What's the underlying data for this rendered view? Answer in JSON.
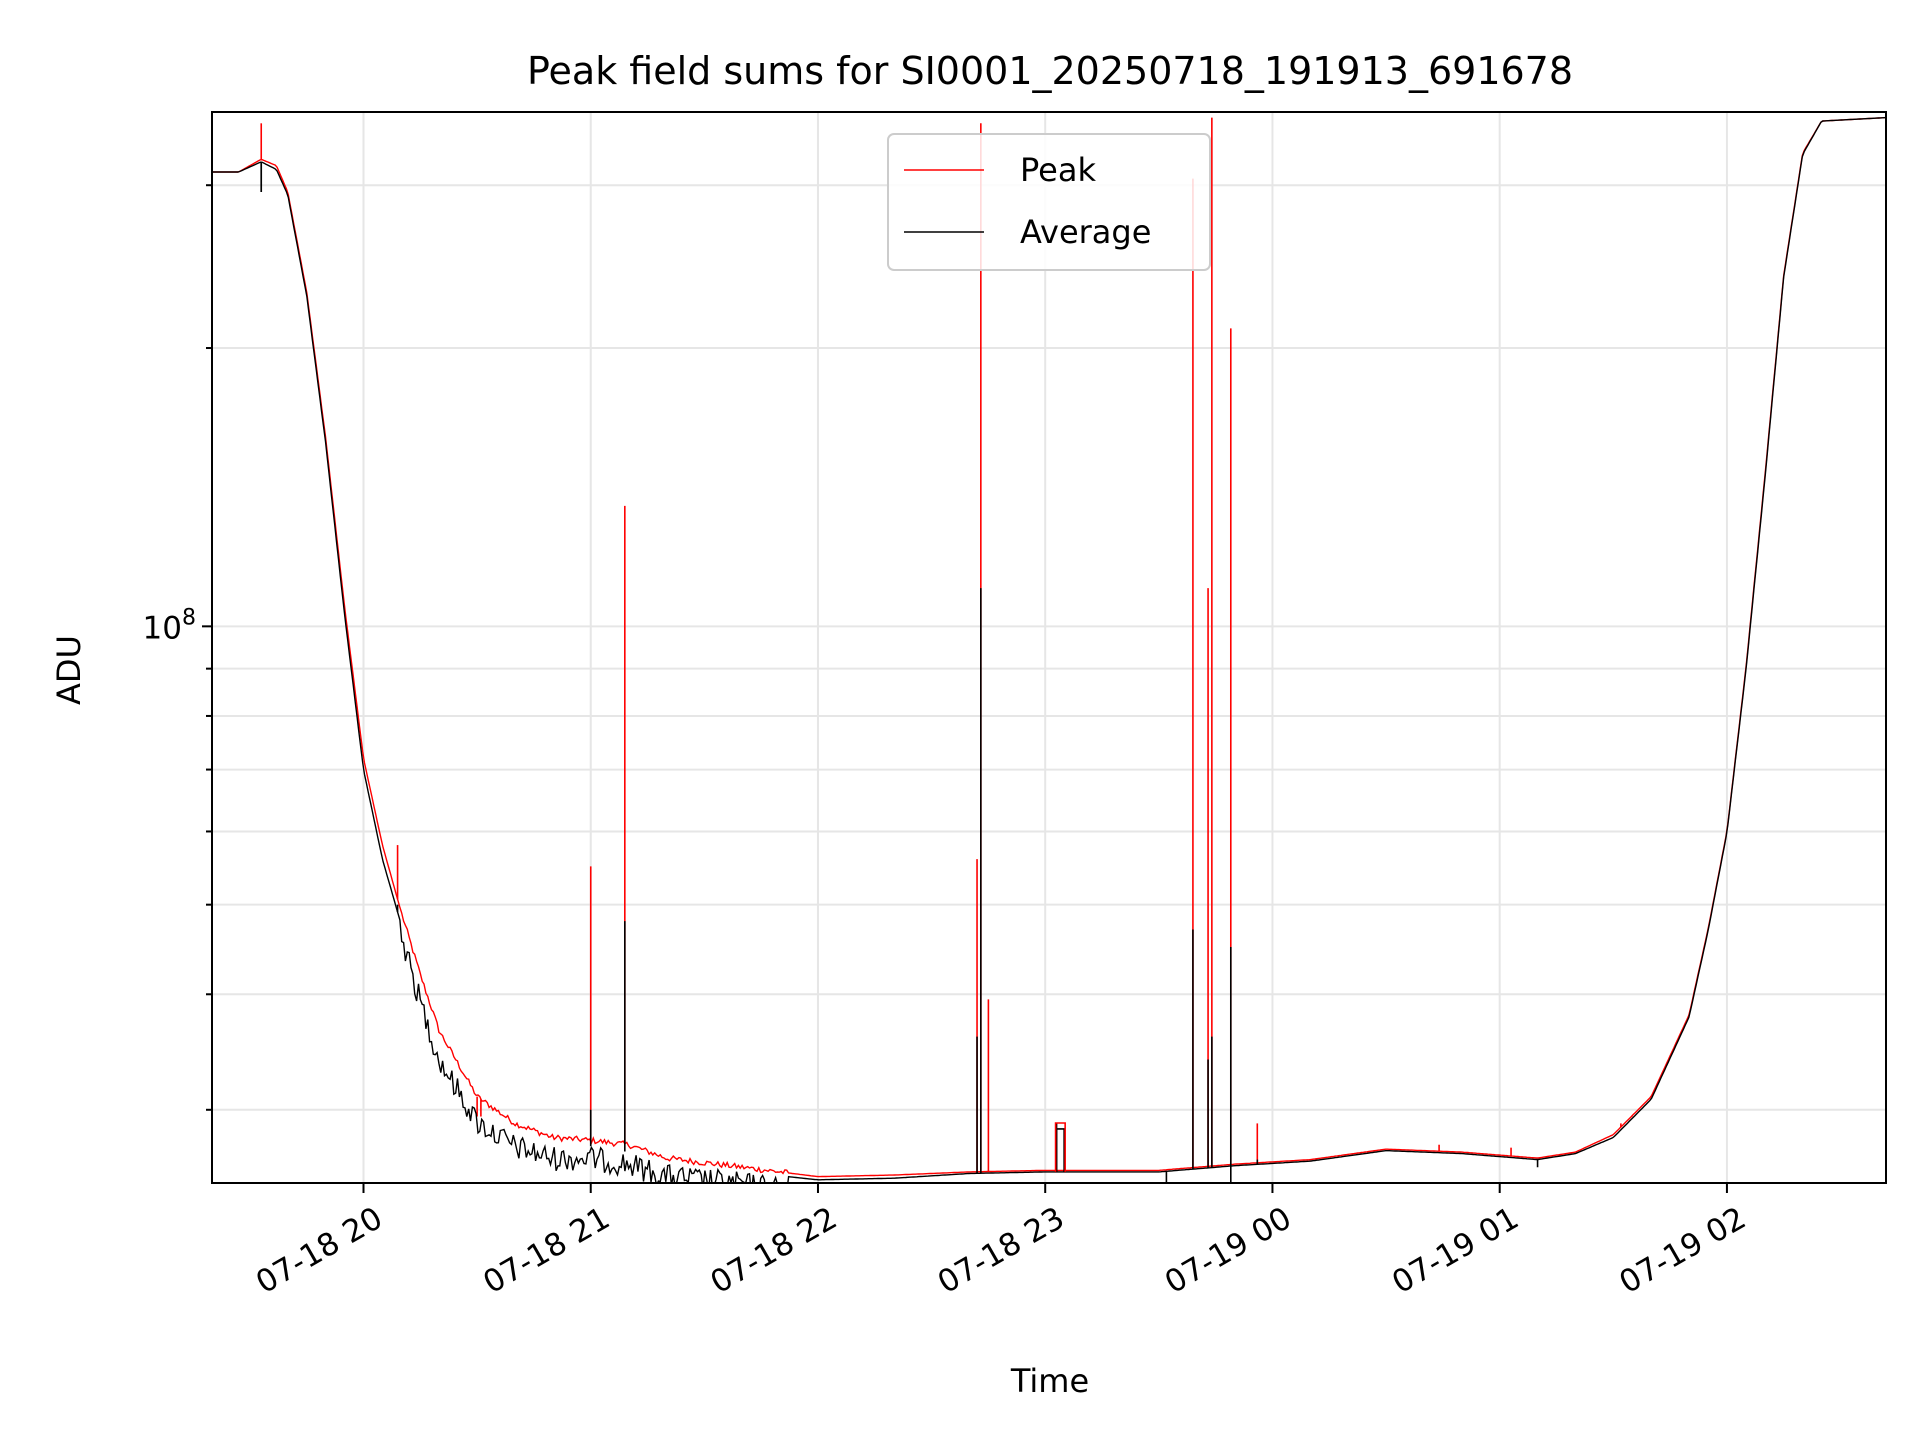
{
  "chart_data": {
    "type": "line",
    "title": "Peak field sums for SI0001_20250718_191913_691678",
    "xlabel": "Time",
    "ylabel": "ADU",
    "yscale": "log",
    "xlim": [
      "2025-07-18T19:20",
      "2025-07-19T02:42"
    ],
    "ylim": [
      25000000,
      360000000
    ],
    "grid": true,
    "legend_position": "top-center",
    "x_ticks": [
      "07-18 20",
      "07-18 21",
      "07-18 22",
      "07-18 23",
      "07-19 00",
      "07-19 01",
      "07-19 02"
    ],
    "y_tick_major": {
      "base": "10",
      "exponent": "8",
      "value": 100000000
    },
    "colors": {
      "peak": "#ff0000",
      "average": "#000000",
      "grid": "#e6e6e6"
    },
    "series": [
      {
        "name": "Peak",
        "baseline": [
          [
            "2025-07-18T19:20",
            310000000.0
          ],
          [
            "2025-07-18T19:27",
            310000000.0
          ],
          [
            "2025-07-18T19:33",
            320000000.0
          ],
          [
            "2025-07-18T19:37",
            315000000.0
          ],
          [
            "2025-07-18T19:40",
            295000000.0
          ],
          [
            "2025-07-18T19:45",
            230000000.0
          ],
          [
            "2025-07-18T19:50",
            160000000.0
          ],
          [
            "2025-07-18T19:55",
            105000000.0
          ],
          [
            "2025-07-18T20:00",
            72000000.0
          ],
          [
            "2025-07-18T20:05",
            58000000.0
          ],
          [
            "2025-07-18T20:10",
            49000000.0
          ],
          [
            "2025-07-18T20:15",
            42000000.0
          ],
          [
            "2025-07-18T20:20",
            36500000.0
          ],
          [
            "2025-07-18T20:30",
            31000000.0
          ],
          [
            "2025-07-18T20:40",
            29000000.0
          ],
          [
            "2025-07-18T20:50",
            28000000.0
          ],
          [
            "2025-07-18T21:00",
            27800000.0
          ],
          [
            "2025-07-18T21:10",
            27500000.0
          ],
          [
            "2025-07-18T21:20",
            26600000.0
          ],
          [
            "2025-07-18T21:40",
            26000000.0
          ],
          [
            "2025-07-18T22:00",
            25400000.0
          ],
          [
            "2025-07-18T22:20",
            25500000.0
          ],
          [
            "2025-07-18T22:40",
            25700000.0
          ],
          [
            "2025-07-18T23:00",
            25800000.0
          ],
          [
            "2025-07-18T23:30",
            25800000.0
          ],
          [
            "2025-07-18T23:50",
            26200000.0
          ],
          [
            "2025-07-19T00:10",
            26500000.0
          ],
          [
            "2025-07-19T00:30",
            27200000.0
          ],
          [
            "2025-07-19T00:50",
            27000000.0
          ],
          [
            "2025-07-19T01:10",
            26600000.0
          ],
          [
            "2025-07-19T01:20",
            27000000.0
          ],
          [
            "2025-07-19T01:30",
            28200000.0
          ],
          [
            "2025-07-19T01:40",
            31000000.0
          ],
          [
            "2025-07-19T01:50",
            38000000.0
          ],
          [
            "2025-07-19T01:55",
            47000000.0
          ],
          [
            "2025-07-19T02:00",
            60000000.0
          ],
          [
            "2025-07-19T02:05",
            90000000.0
          ],
          [
            "2025-07-19T02:10",
            145000000.0
          ],
          [
            "2025-07-19T02:15",
            240000000.0
          ],
          [
            "2025-07-19T02:20",
            325000000.0
          ],
          [
            "2025-07-19T02:25",
            352000000.0
          ],
          [
            "2025-07-19T02:42",
            355000000.0
          ]
        ],
        "spikes": [
          [
            "2025-07-18T19:33",
            350000000.0
          ],
          [
            "2025-07-18T20:09",
            58000000.0
          ],
          [
            "2025-07-18T20:30",
            29500000.0
          ],
          [
            "2025-07-18T20:31",
            29500000.0
          ],
          [
            "2025-07-18T21:00",
            55000000.0
          ],
          [
            "2025-07-18T21:09",
            135000000.0
          ],
          [
            "2025-07-18T22:42",
            56000000.0
          ],
          [
            "2025-07-18T22:43",
            350000000.0
          ],
          [
            "2025-07-18T22:45",
            39500000.0
          ],
          [
            "2025-07-18T23:39",
            305000000.0
          ],
          [
            "2025-07-18T23:43",
            110000000.0
          ],
          [
            "2025-07-18T23:44",
            355000000.0
          ],
          [
            "2025-07-18T23:49",
            210000000.0
          ],
          [
            "2025-07-18T23:56",
            29000000.0
          ],
          [
            "2025-07-19T00:44",
            27500000.0
          ],
          [
            "2025-07-19T01:03",
            27300000.0
          ],
          [
            "2025-07-19T01:28",
            28000000.0
          ],
          [
            "2025-07-19T01:32",
            29000000.0
          ],
          [
            "2025-07-19T01:35",
            29500000.0
          ]
        ]
      },
      {
        "name": "Average",
        "baseline": [
          [
            "2025-07-18T19:20",
            310000000.0
          ],
          [
            "2025-07-18T19:27",
            310000000.0
          ],
          [
            "2025-07-18T19:33",
            318000000.0
          ],
          [
            "2025-07-18T19:37",
            312000000.0
          ],
          [
            "2025-07-18T19:40",
            293000000.0
          ],
          [
            "2025-07-18T19:45",
            228000000.0
          ],
          [
            "2025-07-18T19:50",
            158000000.0
          ],
          [
            "2025-07-18T19:55",
            103000000.0
          ],
          [
            "2025-07-18T20:00",
            70000000.0
          ],
          [
            "2025-07-18T20:05",
            56000000.0
          ],
          [
            "2025-07-18T20:10",
            47500000.0
          ],
          [
            "2025-07-18T20:15",
            40500000.0
          ],
          [
            "2025-07-18T20:20",
            35000000.0
          ],
          [
            "2025-07-18T20:30",
            30000000.0
          ],
          [
            "2025-07-18T20:40",
            28200000.0
          ],
          [
            "2025-07-18T20:50",
            27400000.0
          ],
          [
            "2025-07-18T21:00",
            27400000.0
          ],
          [
            "2025-07-18T21:10",
            27000000.0
          ],
          [
            "2025-07-18T21:20",
            26200000.0
          ],
          [
            "2025-07-18T21:40",
            25700000.0
          ],
          [
            "2025-07-18T22:00",
            25200000.0
          ],
          [
            "2025-07-18T22:20",
            25300000.0
          ],
          [
            "2025-07-18T22:40",
            25600000.0
          ],
          [
            "2025-07-18T23:00",
            25700000.0
          ],
          [
            "2025-07-18T23:30",
            25700000.0
          ],
          [
            "2025-07-18T23:50",
            26100000.0
          ],
          [
            "2025-07-19T00:10",
            26400000.0
          ],
          [
            "2025-07-19T00:30",
            27100000.0
          ],
          [
            "2025-07-19T00:50",
            26900000.0
          ],
          [
            "2025-07-19T01:10",
            26500000.0
          ],
          [
            "2025-07-19T01:20",
            26900000.0
          ],
          [
            "2025-07-19T01:30",
            28000000.0
          ],
          [
            "2025-07-19T01:40",
            30800000.0
          ],
          [
            "2025-07-19T01:50",
            37800000.0
          ],
          [
            "2025-07-19T01:55",
            46800000.0
          ],
          [
            "2025-07-19T02:00",
            59800000.0
          ],
          [
            "2025-07-19T02:05",
            89500000.0
          ],
          [
            "2025-07-19T02:10",
            144000000.0
          ],
          [
            "2025-07-19T02:15",
            239000000.0
          ],
          [
            "2025-07-19T02:20",
            324000000.0
          ],
          [
            "2025-07-19T02:25",
            352000000.0
          ],
          [
            "2025-07-19T02:42",
            355000000.0
          ]
        ],
        "spikes": [
          [
            "2025-07-18T19:33",
            295000000.0
          ],
          [
            "2025-07-18T20:09",
            50000000.0
          ],
          [
            "2025-07-18T21:00",
            30000000.0
          ],
          [
            "2025-07-18T21:09",
            48000000.0
          ],
          [
            "2025-07-18T22:42",
            36000000.0
          ],
          [
            "2025-07-18T22:43",
            110000000.0
          ],
          [
            "2025-07-18T23:03",
            29000000.0
          ],
          [
            "2025-07-18T23:39",
            47000000.0
          ],
          [
            "2025-07-18T23:43",
            34000000.0
          ],
          [
            "2025-07-18T23:44",
            36000000.0
          ],
          [
            "2025-07-18T23:49",
            45000000.0
          ],
          [
            "2025-07-18T23:56",
            26500000.0
          ]
        ],
        "dips": [
          [
            "2025-07-18T19:33",
            295000000.0
          ],
          [
            "2025-07-18T23:32",
            24500000.0
          ],
          [
            "2025-07-18T23:49",
            24500000.0
          ],
          [
            "2025-07-19T01:10",
            26000000.0
          ]
        ],
        "plateau": [
          [
            "2025-07-18T23:03",
            28600000.0
          ],
          [
            "2025-07-18T23:05",
            28600000.0
          ]
        ]
      }
    ]
  }
}
